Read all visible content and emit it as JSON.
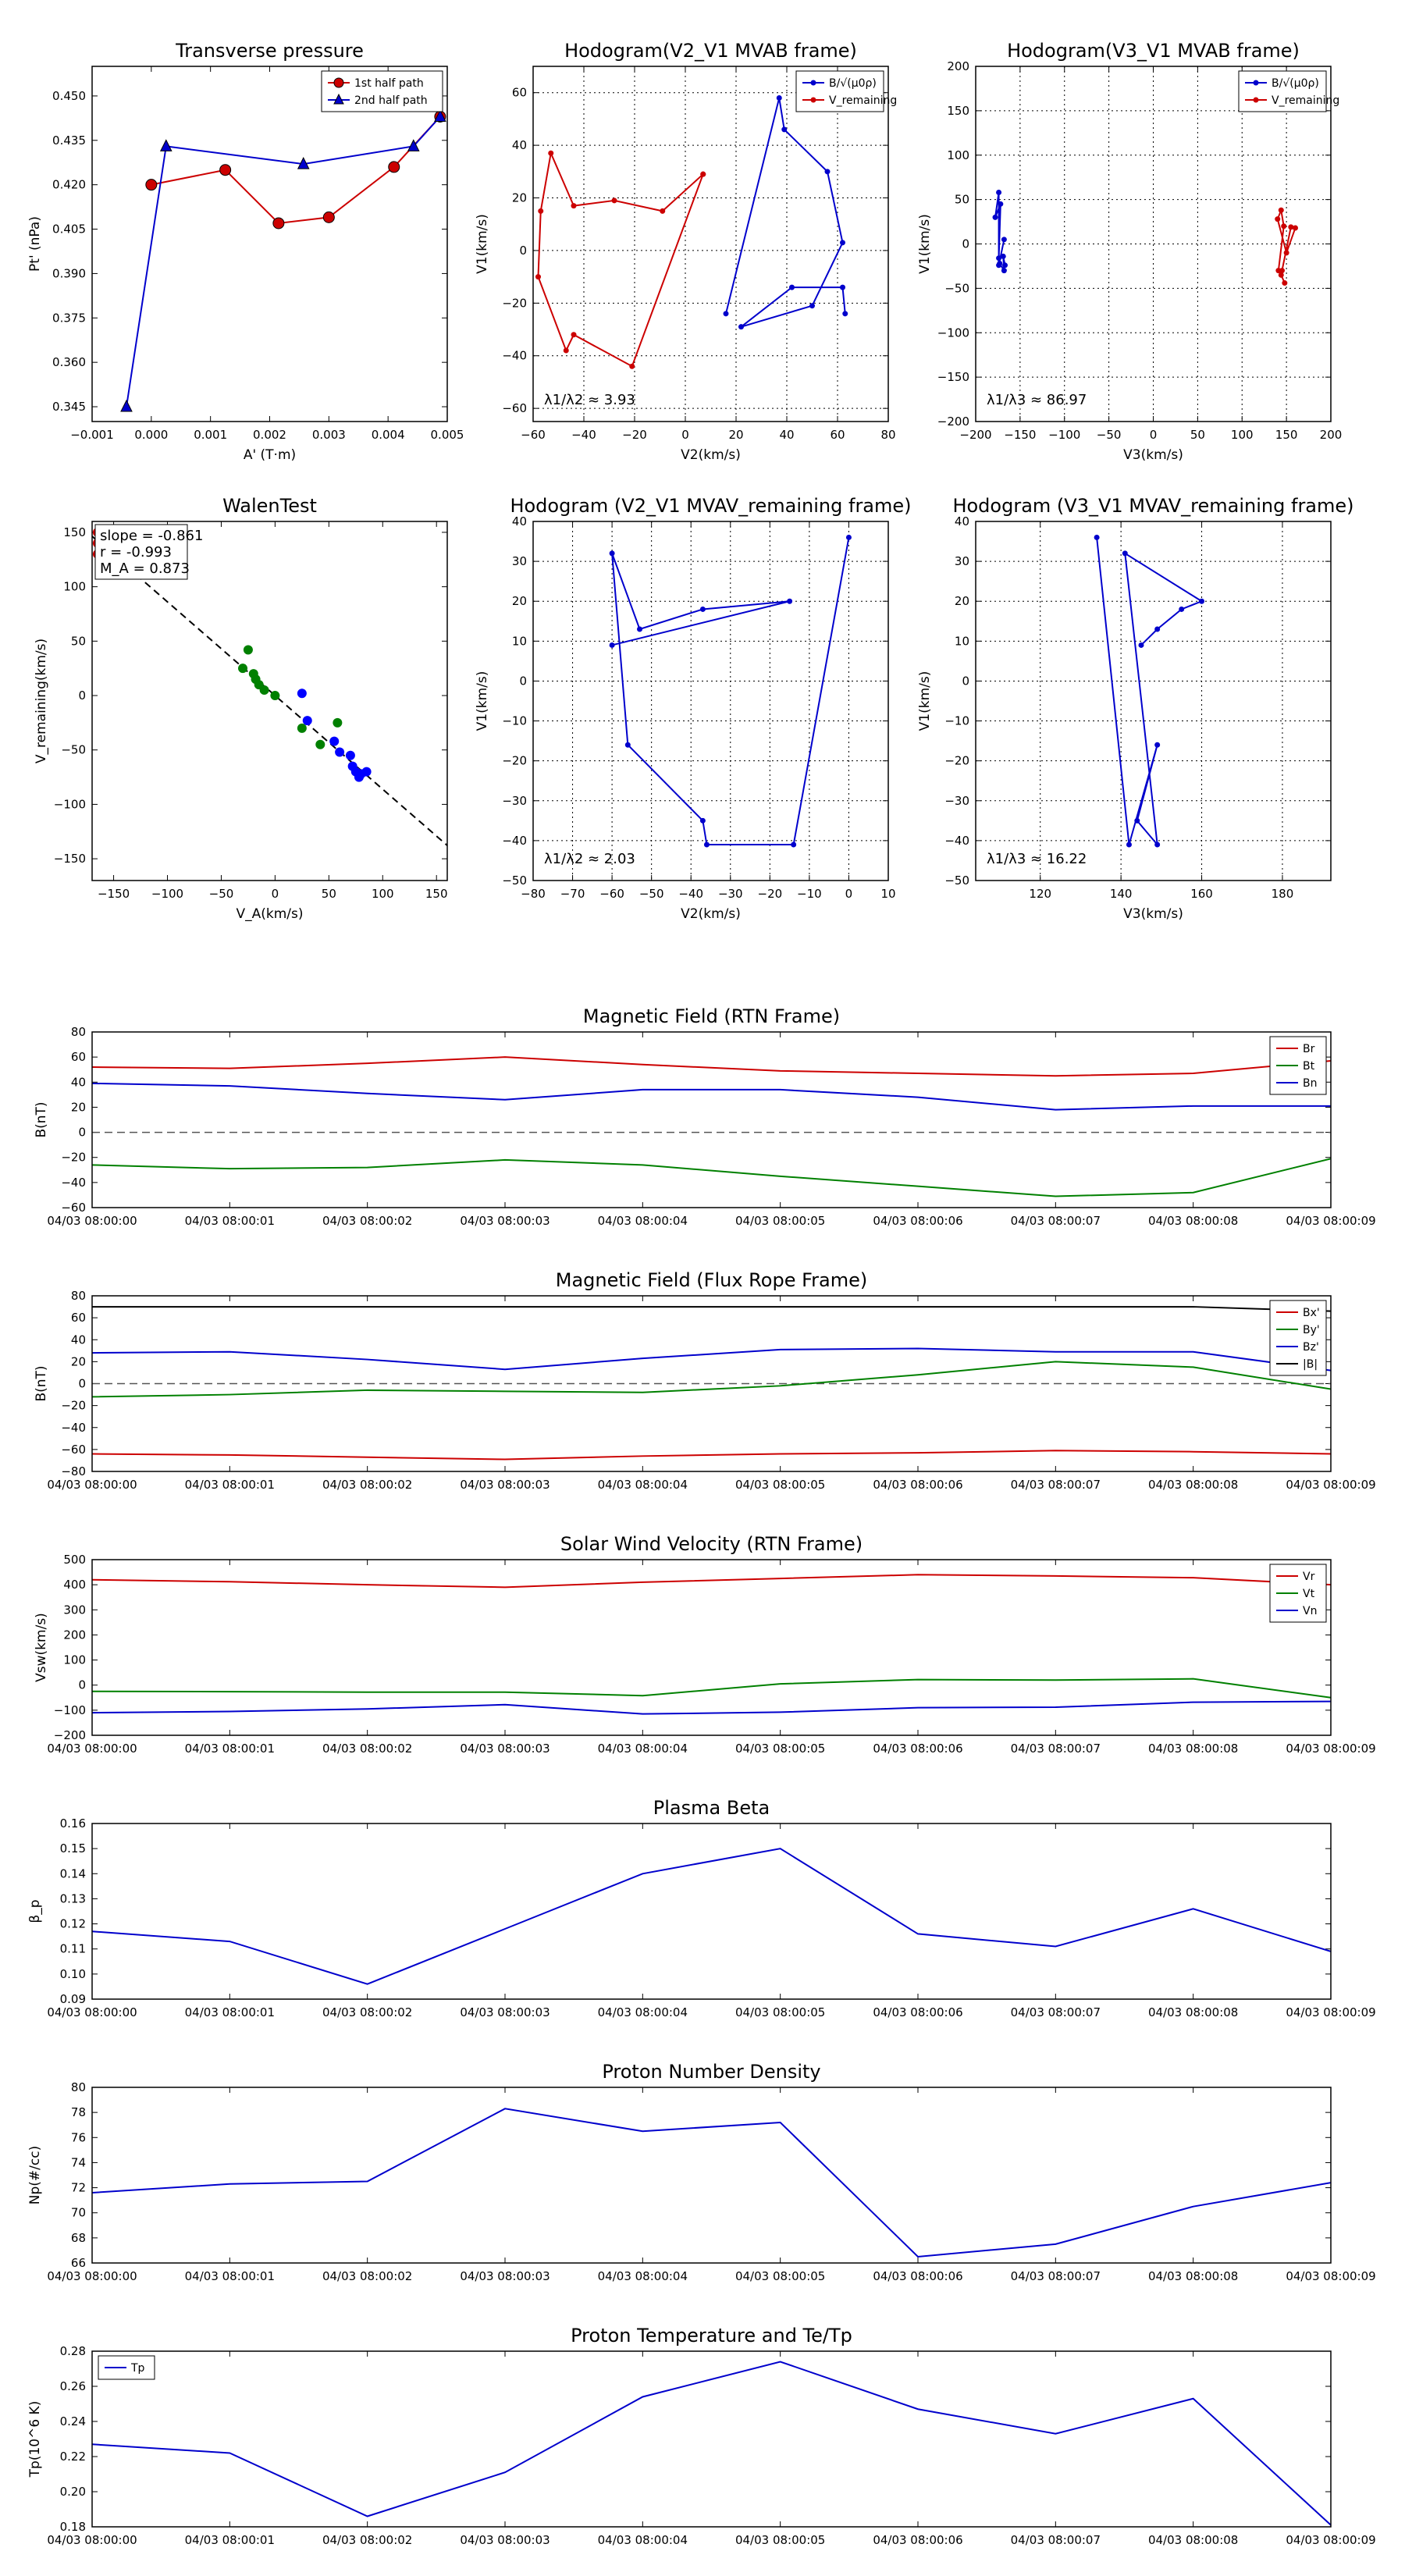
{
  "charts": [
    {
      "id": "tp",
      "type": "line",
      "title": "Transverse pressure",
      "xlabel": "A' (T·m)",
      "ylabel": "Pt' (nPa)",
      "xlim": [
        -0.001,
        0.005
      ],
      "ylim": [
        0.34,
        0.46
      ],
      "xticks": [
        -0.001,
        0,
        0.001,
        0.002,
        0.003,
        0.004,
        0.005
      ],
      "xtick_labels": [
        "−0.001",
        "0.000",
        "0.001",
        "0.002",
        "0.003",
        "0.004",
        "0.005"
      ],
      "yticks": [
        0.345,
        0.36,
        0.375,
        0.39,
        0.405,
        0.42,
        0.435,
        0.45
      ],
      "ytick_labels": [
        "0.345",
        "0.360",
        "0.375",
        "0.390",
        "0.405",
        "0.420",
        "0.435",
        "0.450"
      ],
      "grid": false,
      "legend": "top-right",
      "series": [
        {
          "name": "1st half path",
          "color": "#cc0000",
          "marker": "circle",
          "x": [
            0.0,
            0.00125,
            0.00215,
            0.003,
            0.0041,
            0.00488
          ],
          "y": [
            0.42,
            0.425,
            0.407,
            0.409,
            0.426,
            0.443
          ]
        },
        {
          "name": "2nd half path",
          "color": "#0000cc",
          "marker": "triangle",
          "x": [
            -0.00042,
            0.00025,
            0.00257,
            0.00443,
            0.00488
          ],
          "y": [
            0.345,
            0.433,
            0.427,
            0.433,
            0.443
          ]
        }
      ]
    },
    {
      "id": "hv2",
      "type": "line",
      "title": "Hodogram(V2_V1 MVAB frame)",
      "xlabel": "V2(km/s)",
      "ylabel": "V1(km/s)",
      "xlim": [
        -60,
        80
      ],
      "ylim": [
        -65,
        70
      ],
      "xticks": [
        -60,
        -40,
        -20,
        0,
        20,
        40,
        60,
        80
      ],
      "xtick_labels": [
        "−60",
        "−40",
        "−20",
        "0",
        "20",
        "40",
        "60",
        "80"
      ],
      "yticks": [
        -60,
        -40,
        -20,
        0,
        20,
        40,
        60
      ],
      "ytick_labels": [
        "−60",
        "−40",
        "−20",
        "0",
        "20",
        "40",
        "60"
      ],
      "grid": true,
      "legend": "top-right",
      "annotation": "λ1/λ2 ≈ 3.93",
      "series": [
        {
          "name": "B/√(μ0ρ)",
          "color": "#0000cc",
          "marker": "dot",
          "x": [
            63,
            62,
            42,
            22,
            50,
            62,
            56,
            39,
            37,
            16
          ],
          "y": [
            -24,
            -14,
            -14,
            -29,
            -21,
            3,
            30,
            46,
            58,
            -24
          ]
        },
        {
          "name": "V_remaining",
          "color": "#cc0000",
          "marker": "dot",
          "x": [
            7,
            -9,
            -28,
            -44,
            -53,
            -57,
            -58,
            -47,
            -44,
            -21,
            7
          ],
          "y": [
            29,
            15,
            19,
            17,
            37,
            15,
            -10,
            -38,
            -32,
            -44,
            29
          ]
        }
      ]
    },
    {
      "id": "hv3",
      "type": "line",
      "title": "Hodogram(V3_V1 MVAB frame)",
      "xlabel": "V3(km/s)",
      "ylabel": "V1(km/s)",
      "xlim": [
        -200,
        200
      ],
      "ylim": [
        -200,
        200
      ],
      "xticks": [
        -200,
        -150,
        -100,
        -50,
        0,
        50,
        100,
        150,
        200
      ],
      "xtick_labels": [
        "−200",
        "−150",
        "−100",
        "−50",
        "0",
        "50",
        "100",
        "150",
        "200"
      ],
      "yticks": [
        -200,
        -150,
        -100,
        -50,
        0,
        50,
        100,
        150,
        200
      ],
      "ytick_labels": [
        "−200",
        "−150",
        "−100",
        "−50",
        "0",
        "50",
        "100",
        "150",
        "200"
      ],
      "grid": true,
      "legend": "top-right",
      "annotation": "λ1/λ3 ≈ 86.97",
      "series": [
        {
          "name": "B/√(μ0ρ)",
          "color": "#0000cc",
          "marker": "dot",
          "x": [
            -167,
            -169,
            -168,
            -173,
            -174,
            -172,
            -178,
            -174,
            -174,
            -168
          ],
          "y": [
            -24,
            -14,
            -30,
            -22,
            -16,
            45,
            30,
            58,
            -24,
            5
          ]
        },
        {
          "name": "V_remaining",
          "color": "#cc0000",
          "marker": "dot",
          "x": [
            148,
            144,
            155,
            160,
            150,
            140,
            144,
            147,
            141,
            145
          ],
          "y": [
            -44,
            -35,
            19,
            18,
            -10,
            28,
            38,
            20,
            -30,
            -30
          ]
        }
      ]
    },
    {
      "id": "walen",
      "type": "scatter",
      "title": "WalenTest",
      "xlabel": "V_A(km/s)",
      "ylabel": "V_remaining(km/s)",
      "xlim": [
        -170,
        160
      ],
      "ylim": [
        -170,
        160
      ],
      "xticks": [
        -150,
        -100,
        -50,
        0,
        50,
        100,
        150
      ],
      "xtick_labels": [
        "−150",
        "−100",
        "−50",
        "0",
        "50",
        "100",
        "150"
      ],
      "yticks": [
        -150,
        -100,
        -50,
        0,
        50,
        100,
        150
      ],
      "ytick_labels": [
        "−150",
        "−100",
        "−50",
        "0",
        "50",
        "100",
        "150"
      ],
      "grid": false,
      "stats": [
        "slope = -0.861",
        "r = -0.993",
        "M_A = 0.873"
      ],
      "fit": {
        "slope": -0.861,
        "intercept": 0
      },
      "series": [
        {
          "name": "green",
          "color": "#008000",
          "x": [
            -25,
            -30,
            -20,
            -18,
            -15,
            -10,
            0,
            25,
            42,
            58
          ],
          "y": [
            42,
            25,
            20,
            15,
            10,
            5,
            0,
            -30,
            -45,
            -25
          ]
        },
        {
          "name": "blue",
          "color": "#0000ff",
          "x": [
            25,
            30,
            55,
            60,
            70,
            72,
            75,
            78,
            80,
            85
          ],
          "y": [
            2,
            -23,
            -42,
            -52,
            -55,
            -65,
            -70,
            -75,
            -72,
            -70
          ]
        },
        {
          "name": "red",
          "color": "#cc0000",
          "x": [
            -165,
            -165,
            -165
          ],
          "y": [
            150,
            140,
            130
          ]
        }
      ]
    },
    {
      "id": "hv2r",
      "type": "line",
      "title": "Hodogram (V2_V1 MVAV_remaining frame)",
      "xlabel": "V2(km/s)",
      "ylabel": "V1(km/s)",
      "xlim": [
        -80,
        10
      ],
      "ylim": [
        -50,
        40
      ],
      "xticks": [
        -80,
        -70,
        -60,
        -50,
        -40,
        -30,
        -20,
        -10,
        0,
        10
      ],
      "xtick_labels": [
        "−80",
        "−70",
        "−60",
        "−50",
        "−40",
        "−30",
        "−20",
        "−10",
        "0",
        "10"
      ],
      "yticks": [
        -50,
        -40,
        -30,
        -20,
        -10,
        0,
        10,
        20,
        30,
        40
      ],
      "ytick_labels": [
        "−50",
        "−40",
        "−30",
        "−20",
        "−10",
        "0",
        "10",
        "20",
        "30",
        "40"
      ],
      "grid": true,
      "annotation": "λ1/λ2 ≈ 2.03",
      "series": [
        {
          "name": "hodogram",
          "color": "#0000cc",
          "marker": "dot",
          "x": [
            0,
            -14,
            -36,
            -37,
            -56,
            -60,
            -53,
            -37,
            -15,
            -60
          ],
          "y": [
            36,
            -41,
            -41,
            -35,
            -16,
            32,
            13,
            18,
            20,
            9
          ]
        }
      ]
    },
    {
      "id": "hv3r",
      "type": "line",
      "title": "Hodogram (V3_V1 MVAV_remaining frame)",
      "xlabel": "V3(km/s)",
      "ylabel": "V1(km/s)",
      "xlim": [
        104,
        192
      ],
      "ylim": [
        -50,
        40
      ],
      "xticks": [
        120,
        140,
        160,
        180
      ],
      "xtick_labels": [
        "120",
        "140",
        "160",
        "180"
      ],
      "yticks": [
        -50,
        -40,
        -30,
        -20,
        -10,
        0,
        10,
        20,
        30,
        40
      ],
      "ytick_labels": [
        "−50",
        "−40",
        "−30",
        "−20",
        "−10",
        "0",
        "10",
        "20",
        "30",
        "40"
      ],
      "grid": true,
      "annotation": "λ1/λ3 ≈ 16.22",
      "series": [
        {
          "name": "hodogram",
          "color": "#0000cc",
          "marker": "dot",
          "x": [
            134,
            142,
            149,
            144,
            149,
            141,
            160,
            155,
            149,
            145
          ],
          "y": [
            36,
            -41,
            -16,
            -35,
            -41,
            32,
            20,
            18,
            13,
            9
          ]
        }
      ]
    },
    {
      "id": "mag_rtn",
      "type": "line",
      "title": "Magnetic Field (RTN Frame)",
      "xlabel": "",
      "ylabel": "B(nT)",
      "ylim": [
        -60,
        80
      ],
      "yticks": [
        -60,
        -40,
        -20,
        0,
        20,
        40,
        60,
        80
      ],
      "ytick_labels": [
        "−60",
        "−40",
        "−20",
        "0",
        "20",
        "40",
        "60",
        "80"
      ],
      "zero_line": true,
      "grid": false,
      "legend": "top-right",
      "series": [
        {
          "name": "Br",
          "color": "#cc0000",
          "values": [
            52,
            51,
            55,
            60,
            54,
            49,
            47,
            45,
            47,
            57
          ]
        },
        {
          "name": "Bt",
          "color": "#008000",
          "values": [
            -26,
            -29,
            -28,
            -22,
            -26,
            -35,
            -43,
            -51,
            -48,
            -21
          ]
        },
        {
          "name": "Bn",
          "color": "#0000cc",
          "values": [
            39,
            37,
            31,
            26,
            34,
            34,
            28,
            18,
            21,
            21
          ]
        }
      ]
    },
    {
      "id": "mag_fr",
      "type": "line",
      "title": "Magnetic Field (Flux Rope Frame)",
      "xlabel": "",
      "ylabel": "B(nT)",
      "ylim": [
        -80,
        80
      ],
      "yticks": [
        -80,
        -60,
        -40,
        -20,
        0,
        20,
        40,
        60,
        80
      ],
      "ytick_labels": [
        "−80",
        "−60",
        "−40",
        "−20",
        "0",
        "20",
        "40",
        "60",
        "80"
      ],
      "zero_line": true,
      "grid": false,
      "legend": "top-right",
      "series": [
        {
          "name": "Bx'",
          "color": "#cc0000",
          "values": [
            -64,
            -65,
            -67,
            -69,
            -66,
            -64,
            -63,
            -61,
            -62,
            -64
          ]
        },
        {
          "name": "By'",
          "color": "#008000",
          "values": [
            -12,
            -10,
            -6,
            -7,
            -8,
            -2,
            8,
            20,
            15,
            -5
          ]
        },
        {
          "name": "Bz'",
          "color": "#0000cc",
          "values": [
            28,
            29,
            22,
            13,
            23,
            31,
            32,
            29,
            29,
            12
          ]
        },
        {
          "name": "|B|",
          "color": "#000000",
          "values": [
            70,
            70,
            70,
            70,
            70,
            70,
            70,
            70,
            70,
            66
          ]
        }
      ]
    },
    {
      "id": "vel",
      "type": "line",
      "title": "Solar Wind Velocity (RTN Frame)",
      "xlabel": "",
      "ylabel": "Vsw(km/s)",
      "ylim": [
        -200,
        500
      ],
      "yticks": [
        -200,
        -100,
        0,
        100,
        200,
        300,
        400,
        500
      ],
      "ytick_labels": [
        "−200",
        "−100",
        "0",
        "100",
        "200",
        "300",
        "400",
        "500"
      ],
      "grid": false,
      "legend": "top-right",
      "series": [
        {
          "name": "Vr",
          "color": "#cc0000",
          "values": [
            420,
            412,
            400,
            390,
            410,
            425,
            440,
            435,
            428,
            400
          ]
        },
        {
          "name": "Vt",
          "color": "#008000",
          "values": [
            -25,
            -26,
            -28,
            -28,
            -42,
            5,
            22,
            20,
            25,
            -50
          ]
        },
        {
          "name": "Vn",
          "color": "#0000cc",
          "values": [
            -110,
            -105,
            -95,
            -78,
            -115,
            -108,
            -90,
            -88,
            -68,
            -65
          ]
        }
      ]
    },
    {
      "id": "beta",
      "type": "line",
      "title": "Plasma Beta",
      "xlabel": "",
      "ylabel": "β_p",
      "ylim": [
        0.09,
        0.16
      ],
      "yticks": [
        0.09,
        0.1,
        0.11,
        0.12,
        0.13,
        0.14,
        0.15,
        0.16
      ],
      "ytick_labels": [
        "0.09",
        "0.10",
        "0.11",
        "0.12",
        "0.13",
        "0.14",
        "0.15",
        "0.16"
      ],
      "grid": false,
      "series": [
        {
          "name": "beta",
          "color": "#0000cc",
          "values": [
            0.117,
            0.113,
            0.096,
            0.118,
            0.14,
            0.15,
            0.116,
            0.111,
            0.126,
            0.109
          ]
        }
      ]
    },
    {
      "id": "np",
      "type": "line",
      "title": "Proton Number Density",
      "xlabel": "",
      "ylabel": "Np(#/cc)",
      "ylim": [
        66,
        80
      ],
      "yticks": [
        66,
        68,
        70,
        72,
        74,
        76,
        78,
        80
      ],
      "ytick_labels": [
        "66",
        "68",
        "70",
        "72",
        "74",
        "76",
        "78",
        "80"
      ],
      "grid": false,
      "series": [
        {
          "name": "Np",
          "color": "#0000cc",
          "values": [
            71.6,
            72.3,
            72.5,
            78.3,
            76.5,
            77.2,
            66.5,
            67.5,
            70.5,
            72.4
          ]
        }
      ]
    },
    {
      "id": "tp_temp",
      "type": "line",
      "title": "Proton Temperature and Te/Tp",
      "xlabel": "",
      "ylabel": "Tp(10^6 K)",
      "ylim": [
        0.18,
        0.28
      ],
      "yticks": [
        0.18,
        0.2,
        0.22,
        0.24,
        0.26,
        0.28
      ],
      "ytick_labels": [
        "0.18",
        "0.20",
        "0.22",
        "0.24",
        "0.26",
        "0.28"
      ],
      "grid": false,
      "legend": "top-left",
      "series": [
        {
          "name": "Tp",
          "color": "#0000cc",
          "values": [
            0.227,
            0.222,
            0.186,
            0.211,
            0.254,
            0.274,
            0.247,
            0.233,
            0.253,
            0.181
          ]
        }
      ]
    }
  ],
  "time_labels": [
    "04/03 08:00:00",
    "04/03 08:00:01",
    "04/03 08:00:02",
    "04/03 08:00:03",
    "04/03 08:00:04",
    "04/03 08:00:05",
    "04/03 08:00:06",
    "04/03 08:00:07",
    "04/03 08:00:08",
    "04/03 08:00:09"
  ]
}
